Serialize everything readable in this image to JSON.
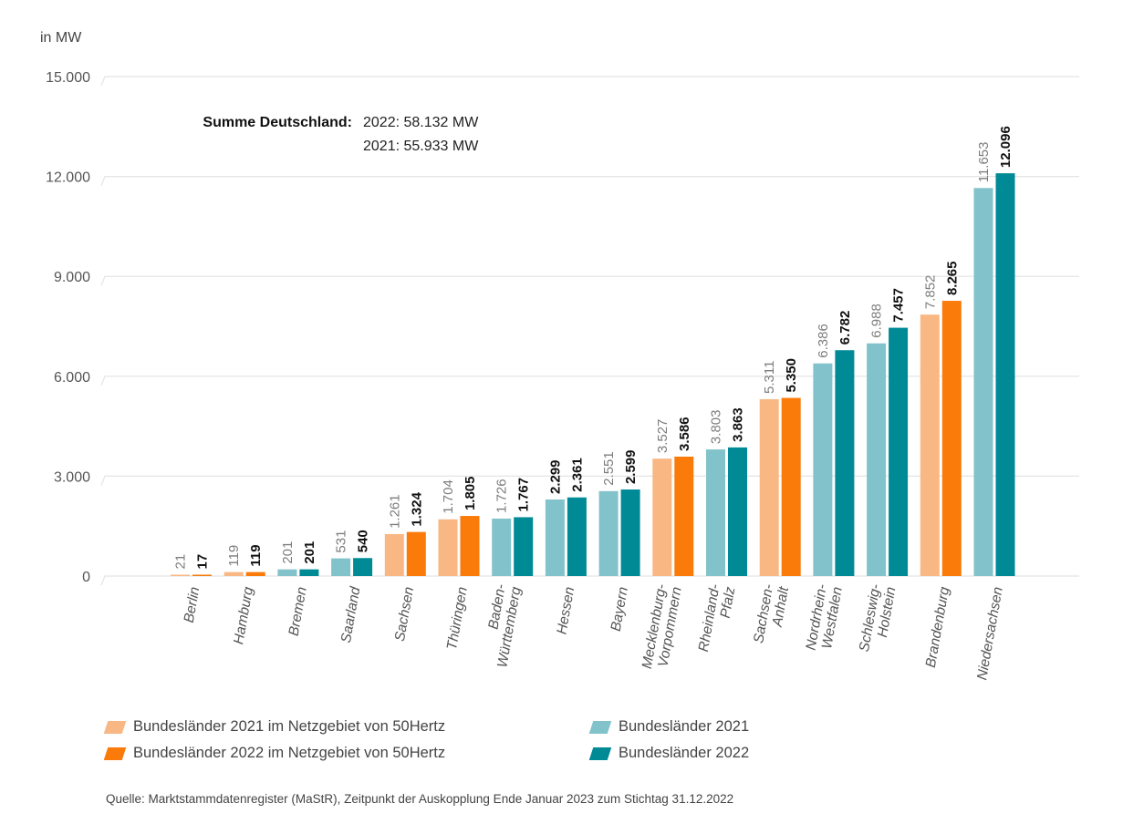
{
  "chart_data": {
    "type": "bar",
    "title": "",
    "ylabel": "in MW",
    "xlabel": "",
    "ylim": [
      0,
      15000
    ],
    "yticks": [
      0,
      3000,
      6000,
      9000,
      12000,
      15000
    ],
    "ytick_labels": [
      "0",
      "3.000",
      "6.000",
      "9.000",
      "12.000",
      "15.000"
    ],
    "grid": true,
    "categories": [
      "Berlin",
      "Hamburg",
      "Bremen",
      "Saarland",
      "Sachsen",
      "Thüringen",
      "Baden-Württemberg",
      "Hessen",
      "Bayern",
      "Mecklenburg-Vorpommern",
      "Rheinland-Pfalz",
      "Sachsen-Anhalt",
      "Nordrhein-Westfalen",
      "Schleswig-Holstein",
      "Brandenburg",
      "Niedersachsen"
    ],
    "category_lines": [
      [
        "Berlin"
      ],
      [
        "Hamburg"
      ],
      [
        "Bremen"
      ],
      [
        "Saarland"
      ],
      [
        "Sachsen"
      ],
      [
        "Thüringen"
      ],
      [
        "Baden-",
        "Württemberg"
      ],
      [
        "Hessen"
      ],
      [
        "Bayern"
      ],
      [
        "Mecklenburg-",
        "Vorpommern"
      ],
      [
        "Rheinland-",
        "Pfalz"
      ],
      [
        "Sachsen-",
        "Anhalt"
      ],
      [
        "Nordrhein-",
        "Westfalen"
      ],
      [
        "Schleswig-",
        "Holstein"
      ],
      [
        "Brandenburg"
      ],
      [
        "Niedersachsen"
      ]
    ],
    "in_50hertz_area": [
      true,
      true,
      false,
      false,
      true,
      true,
      false,
      false,
      false,
      true,
      false,
      true,
      false,
      false,
      true,
      false
    ],
    "series": [
      {
        "name": "2021",
        "values": [
          21,
          119,
          201,
          531,
          1261,
          1704,
          1726,
          2299,
          2551,
          3527,
          3803,
          5311,
          6386,
          6988,
          7852,
          11653
        ],
        "value_labels": [
          "21",
          "119",
          "201",
          "531",
          "1.261",
          "1.704",
          "1.726",
          "2.299",
          "2.551",
          "3.527",
          "3.803",
          "5.311",
          "6.386",
          "6.988",
          "7.852",
          "11.653"
        ],
        "label_bold": [
          false,
          false,
          false,
          false,
          false,
          false,
          false,
          true,
          false,
          false,
          false,
          false,
          false,
          false,
          false,
          false
        ]
      },
      {
        "name": "2022",
        "values": [
          17,
          119,
          201,
          540,
          1324,
          1805,
          1767,
          2361,
          2599,
          3586,
          3863,
          5350,
          6782,
          7457,
          8265,
          12096
        ],
        "value_labels": [
          "17",
          "119",
          "201",
          "540",
          "1.324",
          "1.805",
          "1.767",
          "2.361",
          "2.599",
          "3.586",
          "3.863",
          "5.350",
          "6.782",
          "7.457",
          "8.265",
          "12.096"
        ]
      }
    ],
    "colors": {
      "y2021_50hertz": "#F9B883",
      "y2022_50hertz": "#FA7A0A",
      "y2021": "#82C3CB",
      "y2022": "#008A96"
    },
    "legend": {
      "placement": "bottom",
      "entries": [
        {
          "label": "Bundesländer 2021 im Netzgebiet von 50Hertz",
          "color_key": "y2021_50hertz"
        },
        {
          "label": "Bundesländer 2022 im Netzgebiet von 50Hertz",
          "color_key": "y2022_50hertz"
        },
        {
          "label": "Bundesländer 2021",
          "color_key": "y2021"
        },
        {
          "label": "Bundesländer 2022",
          "color_key": "y2022"
        }
      ]
    },
    "annotation": {
      "title": "Summe Deutschland:",
      "lines": [
        "2022: 58.132 MW",
        "2021: 55.933 MW"
      ]
    }
  },
  "source": "Quelle: Marktstammdatenregister (MaStR), Zeitpunkt der Auskopplung Ende Januar 2023 zum Stichtag 31.12.2022"
}
